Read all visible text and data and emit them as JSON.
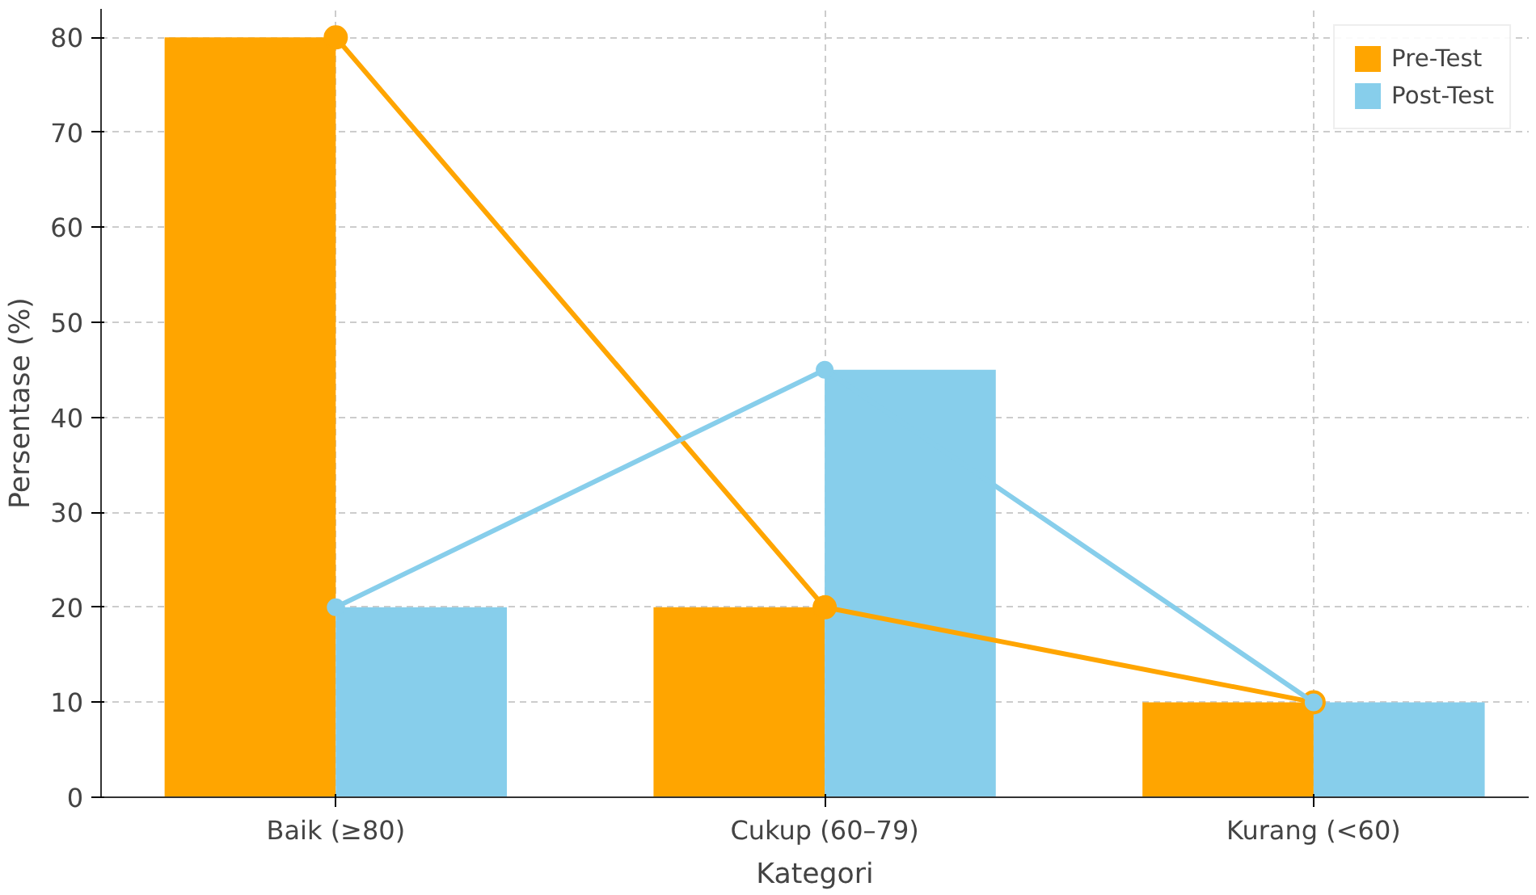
{
  "chart_data": {
    "type": "bar",
    "xlabel": "Kategori",
    "ylabel": "Persentase (%)",
    "categories": [
      "Baik (≥80)",
      "Cukup (60–79)",
      "Kurang (<60)"
    ],
    "series": [
      {
        "name": "Pre-Test",
        "color": "#ffa500",
        "values": [
          80,
          20,
          10
        ]
      },
      {
        "name": "Post-Test",
        "color": "#87ceeb",
        "values": [
          20,
          45,
          10
        ]
      },
      {
        "type": "line",
        "color": "#ffa500",
        "values": [
          80,
          20,
          10
        ]
      },
      {
        "type": "line",
        "color": "#87ceeb",
        "values": [
          20,
          45,
          10
        ]
      }
    ],
    "ylim": [
      0,
      83
    ],
    "yticks": [
      0,
      10,
      20,
      30,
      40,
      50,
      60,
      70,
      80
    ],
    "grid": true,
    "legend": "top right",
    "marker": "circle",
    "line_style": "solid"
  }
}
